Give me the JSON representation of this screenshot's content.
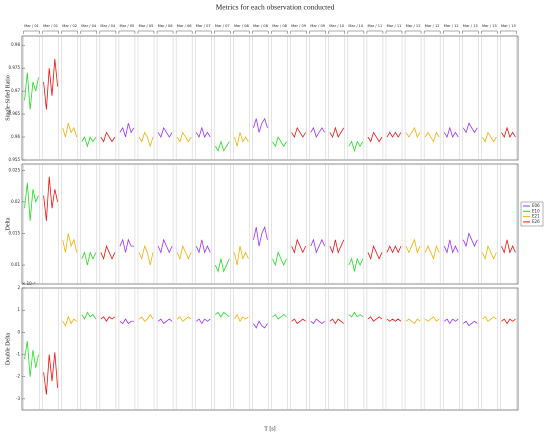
{
  "chart_data": {
    "type": "line",
    "title": "Metrics for each observation conducted",
    "xlabel": "T [s]",
    "series": [
      {
        "name": "E06",
        "color": "#9b30ff"
      },
      {
        "name": "E10",
        "color": "#22dd22"
      },
      {
        "name": "E21",
        "color": "#f0b000"
      },
      {
        "name": "E26",
        "color": "#ee1111"
      }
    ],
    "segments": [
      {
        "label": "Mar / 01",
        "sensor": 1
      },
      {
        "label": "Mar / 01",
        "sensor": 3
      },
      {
        "label": "Mar / 02",
        "sensor": 2
      },
      {
        "label": "Mar / 04",
        "sensor": 1
      },
      {
        "label": "Mar / 04",
        "sensor": 3
      },
      {
        "label": "Mar / 05",
        "sensor": 0
      },
      {
        "label": "Mar / 05",
        "sensor": 2
      },
      {
        "label": "Mar / 06",
        "sensor": 0
      },
      {
        "label": "Mar / 06",
        "sensor": 2
      },
      {
        "label": "Mar / 07",
        "sensor": 0
      },
      {
        "label": "Mar / 07",
        "sensor": 1
      },
      {
        "label": "Mar / 08",
        "sensor": 2
      },
      {
        "label": "Mar / 08",
        "sensor": 0
      },
      {
        "label": "Mar / 08",
        "sensor": 1
      },
      {
        "label": "Mar / 09",
        "sensor": 3
      },
      {
        "label": "Mar / 09",
        "sensor": 0
      },
      {
        "label": "Mar / 10",
        "sensor": 3
      },
      {
        "label": "Mar / 10",
        "sensor": 1
      },
      {
        "label": "Mar / 11",
        "sensor": 3
      },
      {
        "label": "Mar / 11",
        "sensor": 3
      },
      {
        "label": "Mar / 12",
        "sensor": 2
      },
      {
        "label": "Mar / 12",
        "sensor": 2
      },
      {
        "label": "Mar / 12",
        "sensor": 0
      },
      {
        "label": "Mar / 13",
        "sensor": 0
      },
      {
        "label": "Mar / 15",
        "sensor": 2
      },
      {
        "label": "Mar / 15",
        "sensor": 3
      }
    ],
    "panels": [
      {
        "ylabel": "Single-Sided Ratio",
        "ylim": [
          0.955,
          0.982
        ],
        "yticks": [
          0.955,
          0.96,
          0.965,
          0.97,
          0.975,
          0.98
        ],
        "values": [
          [
            0.968,
            0.974,
            0.966,
            0.972,
            0.97,
            0.973
          ],
          [
            0.972,
            0.966,
            0.975,
            0.969,
            0.977,
            0.971
          ],
          [
            0.962,
            0.96,
            0.963,
            0.961,
            0.962,
            0.96
          ],
          [
            0.959,
            0.96,
            0.958,
            0.96,
            0.959,
            0.96
          ],
          [
            0.96,
            0.959,
            0.961,
            0.96,
            0.959,
            0.96
          ],
          [
            0.961,
            0.962,
            0.96,
            0.963,
            0.961,
            0.962
          ],
          [
            0.96,
            0.959,
            0.961,
            0.96,
            0.958,
            0.96
          ],
          [
            0.961,
            0.96,
            0.962,
            0.961,
            0.96,
            0.961
          ],
          [
            0.96,
            0.959,
            0.961,
            0.96,
            0.959,
            0.96
          ],
          [
            0.961,
            0.96,
            0.962,
            0.96,
            0.961,
            0.96
          ],
          [
            0.958,
            0.957,
            0.959,
            0.957,
            0.958,
            0.959
          ],
          [
            0.96,
            0.958,
            0.961,
            0.959,
            0.96,
            0.959
          ],
          [
            0.962,
            0.964,
            0.961,
            0.963,
            0.964,
            0.962
          ],
          [
            0.959,
            0.958,
            0.96,
            0.959,
            0.958,
            0.959
          ],
          [
            0.961,
            0.96,
            0.962,
            0.961,
            0.96,
            0.961
          ],
          [
            0.961,
            0.962,
            0.96,
            0.961,
            0.962,
            0.961
          ],
          [
            0.961,
            0.96,
            0.962,
            0.96,
            0.961,
            0.962
          ],
          [
            0.958,
            0.959,
            0.957,
            0.959,
            0.958,
            0.959
          ],
          [
            0.96,
            0.959,
            0.961,
            0.96,
            0.959,
            0.96
          ],
          [
            0.96,
            0.961,
            0.96,
            0.961,
            0.96,
            0.961
          ],
          [
            0.961,
            0.96,
            0.961,
            0.962,
            0.96,
            0.961
          ],
          [
            0.96,
            0.961,
            0.96,
            0.959,
            0.961,
            0.96
          ],
          [
            0.961,
            0.96,
            0.962,
            0.96,
            0.961,
            0.96
          ],
          [
            0.962,
            0.961,
            0.963,
            0.962,
            0.961,
            0.962
          ],
          [
            0.96,
            0.959,
            0.961,
            0.96,
            0.959,
            0.96
          ],
          [
            0.961,
            0.96,
            0.962,
            0.96,
            0.961,
            0.96
          ]
        ]
      },
      {
        "ylabel": "Delta",
        "ylim": [
          0.007,
          0.026
        ],
        "yticks": [
          0.01,
          0.015,
          0.02,
          0.025
        ],
        "values": [
          [
            0.019,
            0.023,
            0.017,
            0.022,
            0.02,
            0.021
          ],
          [
            0.021,
            0.017,
            0.024,
            0.019,
            0.022,
            0.02
          ],
          [
            0.014,
            0.012,
            0.015,
            0.013,
            0.014,
            0.012
          ],
          [
            0.011,
            0.012,
            0.01,
            0.012,
            0.011,
            0.012
          ],
          [
            0.012,
            0.011,
            0.013,
            0.012,
            0.011,
            0.012
          ],
          [
            0.013,
            0.014,
            0.012,
            0.014,
            0.013,
            0.013
          ],
          [
            0.012,
            0.011,
            0.013,
            0.012,
            0.01,
            0.012
          ],
          [
            0.013,
            0.012,
            0.014,
            0.013,
            0.012,
            0.013
          ],
          [
            0.012,
            0.011,
            0.013,
            0.012,
            0.011,
            0.012
          ],
          [
            0.013,
            0.012,
            0.014,
            0.012,
            0.013,
            0.012
          ],
          [
            0.01,
            0.009,
            0.011,
            0.009,
            0.01,
            0.011
          ],
          [
            0.012,
            0.01,
            0.013,
            0.011,
            0.012,
            0.011
          ],
          [
            0.014,
            0.016,
            0.013,
            0.015,
            0.016,
            0.014
          ],
          [
            0.011,
            0.01,
            0.012,
            0.011,
            0.01,
            0.011
          ],
          [
            0.013,
            0.012,
            0.014,
            0.013,
            0.012,
            0.013
          ],
          [
            0.013,
            0.014,
            0.012,
            0.013,
            0.014,
            0.013
          ],
          [
            0.013,
            0.012,
            0.014,
            0.012,
            0.013,
            0.014
          ],
          [
            0.01,
            0.011,
            0.009,
            0.011,
            0.01,
            0.011
          ],
          [
            0.012,
            0.011,
            0.013,
            0.012,
            0.011,
            0.012
          ],
          [
            0.012,
            0.013,
            0.012,
            0.013,
            0.012,
            0.013
          ],
          [
            0.013,
            0.012,
            0.013,
            0.014,
            0.012,
            0.013
          ],
          [
            0.012,
            0.013,
            0.012,
            0.011,
            0.013,
            0.012
          ],
          [
            0.013,
            0.012,
            0.014,
            0.012,
            0.013,
            0.012
          ],
          [
            0.014,
            0.013,
            0.015,
            0.014,
            0.013,
            0.014
          ],
          [
            0.012,
            0.011,
            0.013,
            0.012,
            0.011,
            0.012
          ],
          [
            0.013,
            0.012,
            0.014,
            0.012,
            0.013,
            0.012
          ]
        ]
      },
      {
        "ylabel": "Double Delta",
        "exponent": "× 10⁻³",
        "ylim": [
          -3.5,
          2
        ],
        "yticks": [
          -3,
          -2,
          -1,
          0,
          1,
          2
        ],
        "values": [
          [
            -1.2,
            -0.4,
            -2.0,
            -0.8,
            -1.6,
            -1.0
          ],
          [
            -1.8,
            -2.8,
            -1.0,
            -2.2,
            -0.9,
            -2.5
          ],
          [
            0.5,
            0.3,
            0.7,
            0.4,
            0.6,
            0.5
          ],
          [
            0.8,
            0.6,
            0.9,
            0.7,
            0.8,
            0.6
          ],
          [
            0.6,
            0.7,
            0.5,
            0.7,
            0.6,
            0.7
          ],
          [
            0.5,
            0.4,
            0.6,
            0.4,
            0.5,
            0.5
          ],
          [
            0.6,
            0.7,
            0.5,
            0.6,
            0.8,
            0.6
          ],
          [
            0.5,
            0.6,
            0.4,
            0.5,
            0.6,
            0.5
          ],
          [
            0.6,
            0.7,
            0.5,
            0.6,
            0.7,
            0.6
          ],
          [
            0.5,
            0.6,
            0.4,
            0.6,
            0.5,
            0.6
          ],
          [
            0.8,
            0.9,
            0.7,
            0.9,
            0.8,
            0.7
          ],
          [
            0.6,
            0.8,
            0.5,
            0.7,
            0.6,
            0.7
          ],
          [
            0.4,
            0.2,
            0.5,
            0.3,
            0.2,
            0.4
          ],
          [
            0.7,
            0.8,
            0.6,
            0.7,
            0.8,
            0.7
          ],
          [
            0.5,
            0.6,
            0.4,
            0.5,
            0.6,
            0.5
          ],
          [
            0.5,
            0.4,
            0.6,
            0.5,
            0.4,
            0.5
          ],
          [
            0.5,
            0.6,
            0.4,
            0.6,
            0.5,
            0.4
          ],
          [
            0.8,
            0.7,
            0.9,
            0.7,
            0.8,
            0.7
          ],
          [
            0.6,
            0.7,
            0.5,
            0.6,
            0.7,
            0.6
          ],
          [
            0.6,
            0.5,
            0.6,
            0.5,
            0.6,
            0.5
          ],
          [
            0.5,
            0.6,
            0.5,
            0.4,
            0.6,
            0.5
          ],
          [
            0.6,
            0.5,
            0.6,
            0.7,
            0.5,
            0.6
          ],
          [
            0.5,
            0.6,
            0.4,
            0.6,
            0.5,
            0.6
          ],
          [
            0.4,
            0.5,
            0.3,
            0.4,
            0.5,
            0.4
          ],
          [
            0.6,
            0.7,
            0.5,
            0.6,
            0.7,
            0.6
          ],
          [
            0.5,
            0.6,
            0.4,
            0.6,
            0.5,
            0.6
          ]
        ]
      }
    ]
  }
}
